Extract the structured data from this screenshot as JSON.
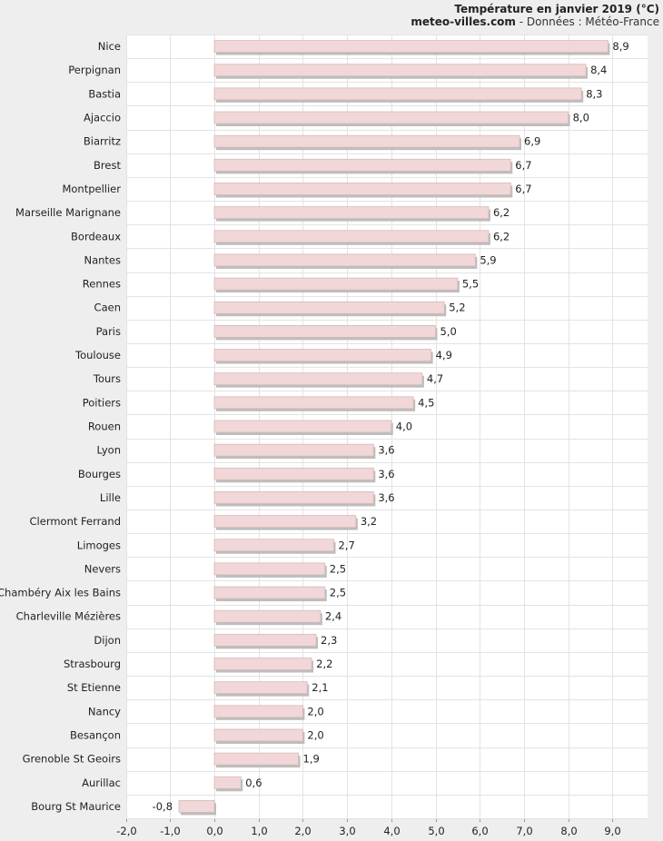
{
  "header": {
    "title": "Température en janvier 2019 (°C)",
    "source_site": "meteo-villes.com",
    "source_rest": " - Données : Météo-France"
  },
  "colors": {
    "background": "#eeeeee",
    "plot_background": "#ffffff",
    "grid": "#e3e3e3",
    "bar_fill": "#f1d7d7",
    "bar_stroke": "#d7b9b9",
    "bar_shadow": "#bdbdbd"
  },
  "chart_data": {
    "type": "bar",
    "orientation": "horizontal",
    "title": "Température en janvier 2019 (°C)",
    "xlim": [
      -2.0,
      9.0
    ],
    "ticks": [
      "-2,0",
      "-1,0",
      "0,0",
      "1,0",
      "2,0",
      "3,0",
      "4,0",
      "5,0",
      "6,0",
      "7,0",
      "8,0",
      "9,0"
    ],
    "tick_values": [
      -2,
      -1,
      0,
      1,
      2,
      3,
      4,
      5,
      6,
      7,
      8,
      9
    ],
    "grid": true,
    "categories": [
      "Nice",
      "Perpignan",
      "Bastia",
      "Ajaccio",
      "Biarritz",
      "Brest",
      "Montpellier",
      "Marseille Marignane",
      "Bordeaux",
      "Nantes",
      "Rennes",
      "Caen",
      "Paris",
      "Toulouse",
      "Tours",
      "Poitiers",
      "Rouen",
      "Lyon",
      "Bourges",
      "Lille",
      "Clermont Ferrand",
      "Limoges",
      "Nevers",
      "Chambéry Aix les Bains",
      "Charleville Mézières",
      "Dijon",
      "Strasbourg",
      "St Etienne",
      "Nancy",
      "Besançon",
      "Grenoble St Geoirs",
      "Aurillac",
      "Bourg St Maurice"
    ],
    "values": [
      8.9,
      8.4,
      8.3,
      8.0,
      6.9,
      6.7,
      6.7,
      6.2,
      6.2,
      5.9,
      5.5,
      5.2,
      5.0,
      4.9,
      4.7,
      4.5,
      4.0,
      3.6,
      3.6,
      3.6,
      3.2,
      2.7,
      2.5,
      2.5,
      2.4,
      2.3,
      2.2,
      2.1,
      2.0,
      2.0,
      1.9,
      0.6,
      -0.8
    ],
    "value_labels": [
      "8,9",
      "8,4",
      "8,3",
      "8,0",
      "6,9",
      "6,7",
      "6,7",
      "6,2",
      "6,2",
      "5,9",
      "5,5",
      "5,2",
      "5,0",
      "4,9",
      "4,7",
      "4,5",
      "4,0",
      "3,6",
      "3,6",
      "3,6",
      "3,2",
      "2,7",
      "2,5",
      "2,5",
      "2,4",
      "2,3",
      "2,2",
      "2,1",
      "2,0",
      "2,0",
      "1,9",
      "0,6",
      "-0,8"
    ]
  }
}
